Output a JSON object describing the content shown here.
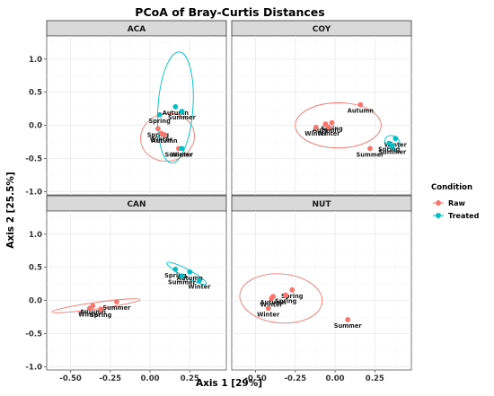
{
  "chart_data": {
    "type": "scatter",
    "title": "PCoA of Bray-Curtis Distances",
    "xlabel": "Axis 1 [29%]",
    "ylabel": "Axis 2 [25.5%]",
    "xlim": [
      -0.65,
      0.48
    ],
    "ylim": [
      -1.05,
      1.35
    ],
    "xticks": [
      -0.5,
      -0.25,
      0.0,
      0.25
    ],
    "xtick_labels": [
      "-0.50",
      "-0.25",
      "0.00",
      "0.25"
    ],
    "yticks": [
      -1.0,
      -0.5,
      0.0,
      0.5,
      1.0
    ],
    "ytick_labels": [
      "-1.0",
      "-0.5",
      "0.0",
      "0.5",
      "1.0"
    ],
    "grid": true,
    "legend": {
      "title": "Condition",
      "position": "right",
      "entries": [
        {
          "name": "Raw",
          "color": "#F8766D"
        },
        {
          "name": "Treated",
          "color": "#00BFC4"
        }
      ]
    },
    "panels": [
      {
        "name": "ACA",
        "series": [
          {
            "name": "Raw",
            "color": "#F8766D",
            "points": [
              {
                "label": "Spring",
                "x": 0.05,
                "y": -0.05
              },
              {
                "label": "Winter",
                "x": 0.07,
                "y": -0.12
              },
              {
                "label": "Autumn",
                "x": 0.09,
                "y": -0.14
              },
              {
                "label": "Summer",
                "x": 0.18,
                "y": -0.35
              }
            ],
            "ellipse": {
              "cx": 0.11,
              "cy": -0.18,
              "rx": 0.17,
              "ry": 0.36,
              "angle": -12
            }
          },
          {
            "name": "Treated",
            "color": "#00BFC4",
            "points": [
              {
                "label": "Autumn",
                "x": 0.16,
                "y": 0.28
              },
              {
                "label": "Spring",
                "x": 0.06,
                "y": 0.16
              },
              {
                "label": "Summer",
                "x": 0.2,
                "y": 0.21
              },
              {
                "label": "Winter",
                "x": 0.2,
                "y": -0.35
              }
            ],
            "ellipse": {
              "cx": 0.16,
              "cy": 0.27,
              "rx": 0.11,
              "ry": 0.84,
              "angle": 4
            }
          }
        ]
      },
      {
        "name": "COY",
        "series": [
          {
            "name": "Raw",
            "color": "#F8766D",
            "points": [
              {
                "label": "Autumn",
                "x": 0.16,
                "y": 0.31
              },
              {
                "label": "Autumn",
                "x": -0.06,
                "y": 0.02
              },
              {
                "label": "Spring",
                "x": -0.02,
                "y": 0.04
              },
              {
                "label": "Winter",
                "x": -0.12,
                "y": -0.03
              },
              {
                "label": "Winter",
                "x": -0.04,
                "y": -0.03
              },
              {
                "label": "Summer",
                "x": 0.22,
                "y": -0.35
              }
            ],
            "ellipse": {
              "cx": 0.02,
              "cy": 0.0,
              "rx": 0.27,
              "ry": 0.34,
              "angle": 0
            }
          },
          {
            "name": "Treated",
            "color": "#00BFC4",
            "points": [
              {
                "label": "Winter",
                "x": 0.38,
                "y": -0.2
              },
              {
                "label": "Spring",
                "x": 0.34,
                "y": -0.27
              },
              {
                "label": "Summer",
                "x": 0.36,
                "y": -0.31
              }
            ],
            "ellipse": {
              "cx": 0.36,
              "cy": -0.26,
              "rx": 0.05,
              "ry": 0.1,
              "angle": 30
            }
          }
        ]
      },
      {
        "name": "CAN",
        "series": [
          {
            "name": "Raw",
            "color": "#F8766D",
            "points": [
              {
                "label": "Autumn",
                "x": -0.36,
                "y": -0.08
              },
              {
                "label": "Winter",
                "x": -0.38,
                "y": -0.12
              },
              {
                "label": "Spring",
                "x": -0.31,
                "y": -0.13
              },
              {
                "label": "Summer",
                "x": -0.21,
                "y": -0.02
              }
            ],
            "ellipse": {
              "cx": -0.34,
              "cy": -0.08,
              "rx": 0.28,
              "ry": 0.05,
              "angle": -8
            }
          },
          {
            "name": "Treated",
            "color": "#00BFC4",
            "points": [
              {
                "label": "Spring",
                "x": 0.16,
                "y": 0.47
              },
              {
                "label": "Autumn",
                "x": 0.25,
                "y": 0.43
              },
              {
                "label": "Summer",
                "x": 0.2,
                "y": 0.37
              },
              {
                "label": "Winter",
                "x": 0.31,
                "y": 0.3
              }
            ],
            "ellipse": {
              "cx": 0.23,
              "cy": 0.41,
              "rx": 0.14,
              "ry": 0.06,
              "angle": 28
            }
          }
        ]
      },
      {
        "name": "NUT",
        "series": [
          {
            "name": "Raw",
            "color": "#F8766D",
            "points": [
              {
                "label": "Spring",
                "x": -0.27,
                "y": 0.16
              },
              {
                "label": "Spring",
                "x": -0.31,
                "y": 0.08
              },
              {
                "label": "Autumn",
                "x": -0.39,
                "y": 0.06
              },
              {
                "label": "Winter",
                "x": -0.4,
                "y": 0.03
              },
              {
                "label": "Winter",
                "x": -0.42,
                "y": -0.12
              },
              {
                "label": "Summer",
                "x": 0.08,
                "y": -0.29
              }
            ],
            "ellipse": {
              "cx": -0.34,
              "cy": 0.03,
              "rx": 0.26,
              "ry": 0.37,
              "angle": 5
            }
          }
        ]
      }
    ]
  }
}
